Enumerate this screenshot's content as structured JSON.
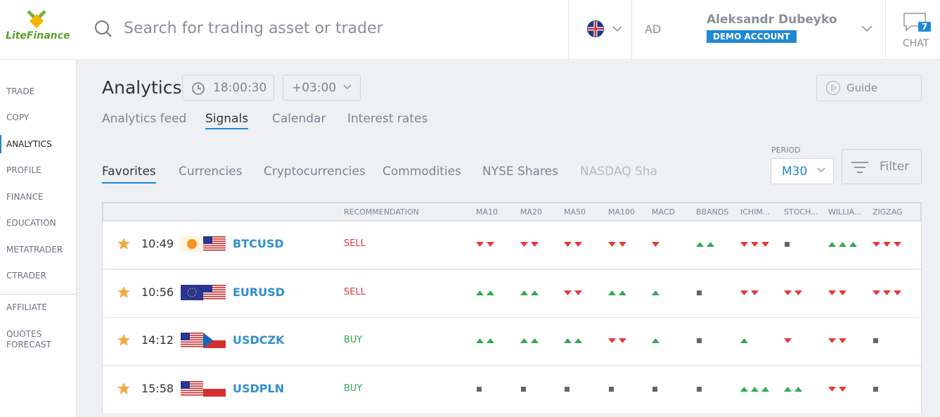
{
  "logo": "LiteFinance",
  "header": {
    "search_placeholder": "Search for trading asset or trader",
    "initials": "AD",
    "user_name": "Aleksandr Dubeyko",
    "account_badge": "DEMO ACCOUNT",
    "chat_count": "7",
    "chat_label": "CHAT"
  },
  "sidebar": {
    "items": [
      "TRADE",
      "COPY",
      "ANALYTICS",
      "PROFILE",
      "FINANCE",
      "EDUCATION",
      "METATRADER",
      "CTRADER",
      "AFFILIATE",
      "QUOTES FORECAST"
    ]
  },
  "page": {
    "title": "Analytics",
    "time": "18:00:30",
    "timezone": "+03:00",
    "guide": "Guide",
    "tabs": [
      "Analytics feed",
      "Signals",
      "Calendar",
      "Interest rates"
    ],
    "subtabs": [
      "Favorites",
      "Currencies",
      "Cryptocurrencies",
      "Commodities",
      "NYSE Shares",
      "NASDAQ Sha"
    ],
    "period_label": "PERIOD",
    "period": "M30",
    "filter": "Filter"
  },
  "table": {
    "headers": [
      "RECOMMENDATION",
      "MA10",
      "MA20",
      "MA50",
      "MA100",
      "MACD",
      "BBANDS",
      "ICHIM...",
      "STOCH...",
      "WILLIA...",
      "ZIGZAG"
    ],
    "rows": [
      [
        "10:49",
        "BTCUSD",
        "SELL"
      ],
      [
        "10:56",
        "EURUSD",
        "SELL"
      ],
      [
        "14:12",
        "USDCZK",
        "BUY"
      ],
      [
        "15:58",
        "USDPLN",
        "BUY"
      ]
    ]
  }
}
